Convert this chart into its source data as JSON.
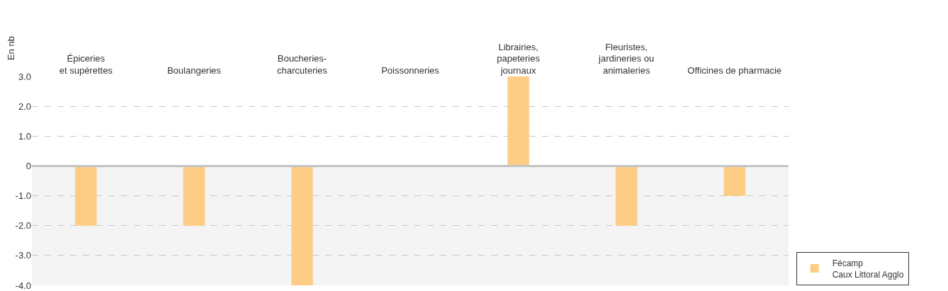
{
  "chart_data": {
    "type": "bar",
    "ylabel": "En nb",
    "categories": [
      "Épiceries\net supérettes",
      "Boulangeries",
      "Boucheries-\ncharcuteries",
      "Poissonneries",
      "Librairies,\npapeteries\njournaux",
      "Fleuristes,\njardineries ou\nanimaleries",
      "Officines de pharmacie"
    ],
    "series": [
      {
        "name": "Fécamp\nCaux Littoral Agglo",
        "color": "#fdcd86",
        "values": [
          -2,
          -2,
          -4,
          0,
          3,
          -2,
          -1
        ]
      }
    ],
    "ylim": [
      -4,
      3
    ],
    "yticks": [
      {
        "value": -4,
        "label": "-4.0"
      },
      {
        "value": -3,
        "label": "-3.0"
      },
      {
        "value": -2,
        "label": "-2.0"
      },
      {
        "value": -1,
        "label": "-1.0"
      },
      {
        "value": 0,
        "label": "0"
      },
      {
        "value": 1,
        "label": "1.0"
      },
      {
        "value": 2,
        "label": "2.0"
      },
      {
        "value": 3,
        "label": "3.0"
      }
    ],
    "grid": "y",
    "legend": "bottom right",
    "bands": [
      {
        "axis": "y",
        "from": -4,
        "to": 0,
        "color": "#f4f4f4"
      }
    ],
    "ref_lines": [
      {
        "axis": "y",
        "value": 0,
        "color": "#c4c4c4"
      }
    ]
  }
}
